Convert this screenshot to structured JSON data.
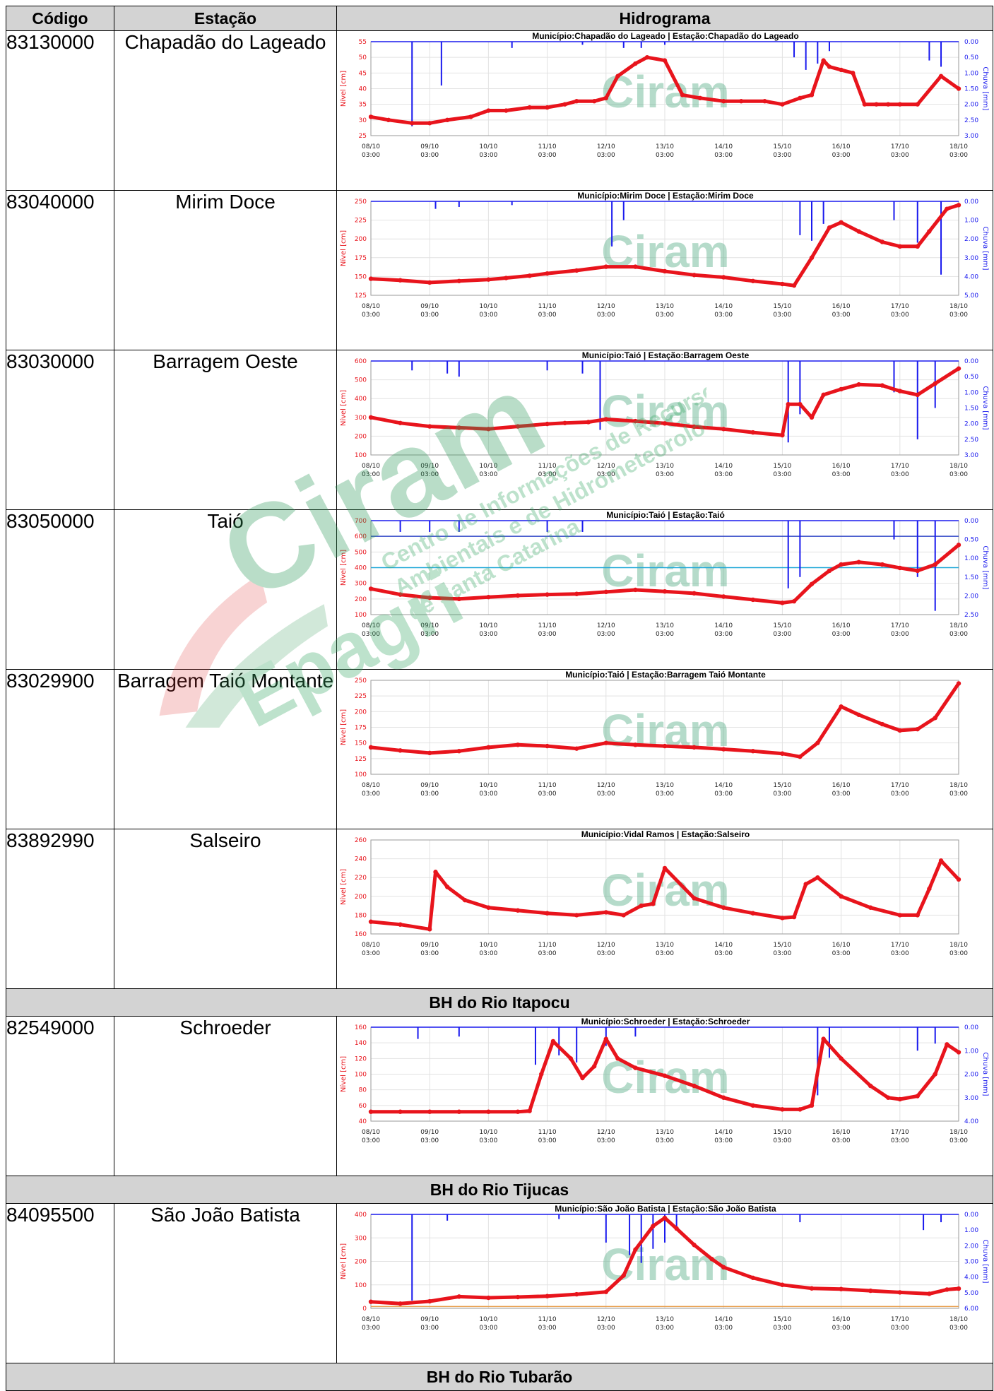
{
  "header": {
    "codigo": "Código",
    "estacao": "Estação",
    "hidrograma": "Hidrograma"
  },
  "watermark": {
    "logo": "Ciram",
    "brand": "Epagri",
    "line1": "Centro de Informações de Recursos",
    "line2": "Ambientais e de Hidrometeorologia",
    "line3": "de Santa Catarina"
  },
  "sections": [
    "BH do Rio Itapocu",
    "BH do Rio Tijucas",
    "BH do Rio Tubarão"
  ],
  "colors": {
    "level": "#e8141c",
    "rain": "#1a1aee",
    "watermark": "#5ab08a",
    "header_bg": "#d3d3d3",
    "alert": "#20a8d8",
    "emergency": "#3248c8",
    "orange_line": "#e8a050"
  },
  "date_labels": [
    "08/10",
    "09/10",
    "10/10",
    "11/10",
    "12/10",
    "13/10",
    "14/10",
    "15/10",
    "16/10",
    "17/10",
    "18/10"
  ],
  "time_label": "03:00",
  "level_axis_label": "Nível [cm]",
  "rain_axis_label": "Chuva [mm]",
  "stations": [
    {
      "code": "83130000",
      "name": "Chapadão do Lageado"
    },
    {
      "code": "83040000",
      "name": "Mirim Doce"
    },
    {
      "code": "83030000",
      "name": "Barragem Oeste"
    },
    {
      "code": "83050000",
      "name": "Taió"
    },
    {
      "code": "83029900",
      "name": "Barragem Taió Montante"
    },
    {
      "code": "83892990",
      "name": "Salseiro"
    },
    {
      "code": "82549000",
      "name": "Schroeder"
    },
    {
      "code": "84095500",
      "name": "São João Batista"
    }
  ],
  "chart_data": [
    {
      "type": "line",
      "title": "Município:Chapadão do Lageado | Estação:Chapadão do Lageado",
      "ylabel": "Nível [cm]",
      "y2label": "Chuva [mm]",
      "ylim": [
        25,
        55
      ],
      "yticks": [
        55,
        50,
        45,
        40,
        35,
        30,
        25
      ],
      "y2lim": [
        0,
        3
      ],
      "y2ticks": [
        "0.00",
        "0.50",
        "1.00",
        "1.50",
        "2.00",
        "2.50",
        "3.00"
      ],
      "series": [
        {
          "x": [
            0,
            0.3,
            0.7,
            1.0,
            1.3,
            1.7,
            2.0,
            2.3,
            2.7,
            3.0,
            3.3,
            3.5,
            3.8,
            4.0,
            4.2,
            4.5,
            4.7,
            5.0,
            5.3,
            5.6,
            6.0,
            6.3,
            6.7,
            7.0,
            7.3,
            7.5,
            7.7,
            7.8,
            8.0,
            8.2,
            8.4,
            8.6,
            8.8,
            9.0,
            9.3,
            9.7,
            10.0
          ],
          "y": [
            31,
            30,
            29,
            29,
            30,
            31,
            33,
            33,
            34,
            34,
            35,
            36,
            36,
            37,
            44,
            48,
            50,
            49,
            38,
            37,
            36,
            36,
            36,
            35,
            37,
            38,
            49,
            47,
            46,
            45,
            35,
            35,
            35,
            35,
            35,
            44,
            40
          ]
        }
      ],
      "rain": [
        {
          "x": 0.7,
          "v": 2.7
        },
        {
          "x": 1.2,
          "v": 1.4
        },
        {
          "x": 2.4,
          "v": 0.2
        },
        {
          "x": 3.6,
          "v": 0.1
        },
        {
          "x": 4.3,
          "v": 0.2
        },
        {
          "x": 4.6,
          "v": 0.2
        },
        {
          "x": 5.0,
          "v": 0.1
        },
        {
          "x": 7.2,
          "v": 0.5
        },
        {
          "x": 7.4,
          "v": 0.9
        },
        {
          "x": 7.6,
          "v": 0.7
        },
        {
          "x": 7.8,
          "v": 0.3
        },
        {
          "x": 9.5,
          "v": 0.6
        },
        {
          "x": 9.7,
          "v": 0.8
        }
      ]
    },
    {
      "type": "line",
      "title": "Município:Mirim Doce | Estação:Mirim Doce",
      "ylabel": "Nível [cm]",
      "y2label": "Chuva [mm]",
      "ylim": [
        125,
        250
      ],
      "yticks": [
        250,
        225,
        200,
        175,
        150,
        125
      ],
      "y2lim": [
        0,
        5
      ],
      "y2ticks": [
        "0.00",
        "1.00",
        "2.00",
        "3.00",
        "4.00",
        "5.00"
      ],
      "series": [
        {
          "x": [
            0,
            0.5,
            1.0,
            1.5,
            2.0,
            2.3,
            2.7,
            3.0,
            3.5,
            4.0,
            4.5,
            5.0,
            5.5,
            6.0,
            6.5,
            7.0,
            7.2,
            7.5,
            7.8,
            8.0,
            8.3,
            8.7,
            9.0,
            9.3,
            9.5,
            9.8,
            10.0
          ],
          "y": [
            147,
            145,
            142,
            144,
            146,
            148,
            151,
            154,
            158,
            163,
            163,
            157,
            152,
            149,
            144,
            140,
            138,
            175,
            215,
            222,
            210,
            196,
            190,
            190,
            210,
            240,
            245
          ]
        }
      ],
      "rain": [
        {
          "x": 1.1,
          "v": 0.4
        },
        {
          "x": 1.5,
          "v": 0.3
        },
        {
          "x": 2.4,
          "v": 0.2
        },
        {
          "x": 4.1,
          "v": 2.4
        },
        {
          "x": 4.3,
          "v": 1.0
        },
        {
          "x": 7.3,
          "v": 1.8
        },
        {
          "x": 7.5,
          "v": 2.1
        },
        {
          "x": 7.7,
          "v": 1.2
        },
        {
          "x": 8.9,
          "v": 1.0
        },
        {
          "x": 9.3,
          "v": 2.2
        },
        {
          "x": 9.7,
          "v": 3.9
        }
      ]
    },
    {
      "type": "line",
      "title": "Município:Taió | Estação:Barragem Oeste",
      "ylabel": "Nível [cm]",
      "y2label": "Chuva [mm]",
      "ylim": [
        100,
        600
      ],
      "yticks": [
        600,
        500,
        400,
        300,
        200,
        100
      ],
      "y2lim": [
        0,
        3
      ],
      "y2ticks": [
        "0.00",
        "0.50",
        "1.00",
        "1.50",
        "2.00",
        "2.50",
        "3.00"
      ],
      "series": [
        {
          "x": [
            0,
            0.5,
            1.0,
            1.5,
            2.0,
            2.5,
            3.0,
            3.3,
            3.7,
            4.0,
            4.5,
            5.0,
            5.5,
            6.0,
            6.5,
            7.0,
            7.1,
            7.3,
            7.5,
            7.7,
            8.0,
            8.3,
            8.7,
            9.0,
            9.3,
            9.6,
            10.0
          ],
          "y": [
            300,
            270,
            252,
            245,
            238,
            252,
            265,
            270,
            275,
            290,
            280,
            268,
            250,
            238,
            220,
            205,
            370,
            370,
            300,
            420,
            450,
            475,
            470,
            440,
            420,
            480,
            560
          ]
        }
      ],
      "rain": [
        {
          "x": 0.7,
          "v": 0.3
        },
        {
          "x": 1.3,
          "v": 0.4
        },
        {
          "x": 1.5,
          "v": 0.5
        },
        {
          "x": 3.0,
          "v": 0.3
        },
        {
          "x": 3.6,
          "v": 0.4
        },
        {
          "x": 3.9,
          "v": 2.2
        },
        {
          "x": 7.1,
          "v": 2.6
        },
        {
          "x": 7.3,
          "v": 1.7
        },
        {
          "x": 8.9,
          "v": 1.0
        },
        {
          "x": 9.3,
          "v": 2.5
        },
        {
          "x": 9.6,
          "v": 1.5
        }
      ]
    },
    {
      "type": "line",
      "title": "Município:Taió | Estação:Taió",
      "ylabel": "Nível [cm]",
      "y2label": "Chuva [mm]",
      "ylim": [
        100,
        700
      ],
      "yticks": [
        700,
        600,
        500,
        400,
        300,
        200,
        100
      ],
      "y2lim": [
        0,
        2.5
      ],
      "y2ticks": [
        "0.00",
        "0.50",
        "1.00",
        "1.50",
        "2.00",
        "2.50"
      ],
      "ref_lines": [
        {
          "y": 600,
          "color": "#3248c8"
        },
        {
          "y": 400,
          "color": "#20a8d8"
        }
      ],
      "series": [
        {
          "x": [
            0,
            0.5,
            1.0,
            1.5,
            2.0,
            2.5,
            3.0,
            3.5,
            4.0,
            4.5,
            5.0,
            5.5,
            6.0,
            6.5,
            7.0,
            7.2,
            7.5,
            7.8,
            8.0,
            8.3,
            8.7,
            9.0,
            9.3,
            9.6,
            10.0
          ],
          "y": [
            265,
            228,
            208,
            200,
            212,
            222,
            228,
            232,
            245,
            258,
            248,
            236,
            215,
            195,
            175,
            185,
            295,
            380,
            420,
            435,
            420,
            398,
            380,
            420,
            545
          ]
        }
      ],
      "rain": [
        {
          "x": 0.5,
          "v": 0.3
        },
        {
          "x": 1.0,
          "v": 0.3
        },
        {
          "x": 1.5,
          "v": 0.3
        },
        {
          "x": 3.0,
          "v": 0.3
        },
        {
          "x": 3.6,
          "v": 0.3
        },
        {
          "x": 7.1,
          "v": 1.8
        },
        {
          "x": 7.3,
          "v": 1.5
        },
        {
          "x": 8.9,
          "v": 0.5
        },
        {
          "x": 9.3,
          "v": 1.5
        },
        {
          "x": 9.6,
          "v": 2.4
        }
      ]
    },
    {
      "type": "line",
      "title": "Município:Taió | Estação:Barragem Taió Montante",
      "ylabel": "Nível [cm]",
      "ylim": [
        100,
        250
      ],
      "yticks": [
        250,
        225,
        200,
        175,
        150,
        125,
        100
      ],
      "series": [
        {
          "x": [
            0,
            0.5,
            1.0,
            1.5,
            2.0,
            2.5,
            3.0,
            3.5,
            4.0,
            4.5,
            5.0,
            5.5,
            6.0,
            6.5,
            7.0,
            7.3,
            7.6,
            8.0,
            8.3,
            8.7,
            9.0,
            9.3,
            9.6,
            10.0
          ],
          "y": [
            143,
            138,
            134,
            137,
            143,
            147,
            145,
            141,
            150,
            147,
            145,
            143,
            140,
            137,
            133,
            128,
            150,
            208,
            195,
            180,
            170,
            172,
            190,
            245
          ]
        }
      ],
      "rain": []
    },
    {
      "type": "line",
      "title": "Município:Vidal Ramos | Estação:Salseiro",
      "ylabel": "Nível [cm]",
      "ylim": [
        160,
        260
      ],
      "yticks": [
        260,
        240,
        220,
        200,
        180,
        160
      ],
      "series": [
        {
          "x": [
            0,
            0.5,
            1.0,
            1.1,
            1.3,
            1.6,
            2.0,
            2.5,
            3.0,
            3.5,
            4.0,
            4.3,
            4.6,
            4.8,
            5.0,
            5.5,
            6.0,
            6.5,
            7.0,
            7.2,
            7.4,
            7.6,
            8.0,
            8.5,
            9.0,
            9.3,
            9.5,
            9.7,
            10.0
          ],
          "y": [
            173,
            170,
            165,
            226,
            210,
            196,
            188,
            185,
            182,
            180,
            183,
            180,
            190,
            192,
            230,
            198,
            188,
            182,
            177,
            178,
            213,
            220,
            200,
            188,
            180,
            180,
            208,
            238,
            218
          ]
        }
      ],
      "rain": []
    },
    {
      "type": "line",
      "title": "Município:Schroeder | Estação:Schroeder",
      "ylabel": "Nível [cm]",
      "y2label": "Chuva [mm]",
      "ylim": [
        40,
        160
      ],
      "yticks": [
        160,
        140,
        120,
        100,
        80,
        60,
        40
      ],
      "y2lim": [
        0,
        4
      ],
      "y2ticks": [
        "0.00",
        "1.00",
        "2.00",
        "3.00",
        "4.00"
      ],
      "series": [
        {
          "x": [
            0,
            0.5,
            1.0,
            1.5,
            2.0,
            2.5,
            2.7,
            2.9,
            3.1,
            3.4,
            3.6,
            3.8,
            4.0,
            4.2,
            4.5,
            5.0,
            5.5,
            6.0,
            6.5,
            7.0,
            7.3,
            7.5,
            7.7,
            8.0,
            8.5,
            8.8,
            9.0,
            9.3,
            9.6,
            9.8,
            10.0
          ],
          "y": [
            52,
            52,
            52,
            52,
            52,
            52,
            53,
            100,
            142,
            120,
            95,
            110,
            145,
            120,
            108,
            98,
            85,
            70,
            60,
            55,
            55,
            60,
            145,
            120,
            85,
            70,
            68,
            72,
            100,
            138,
            128
          ]
        }
      ],
      "rain": [
        {
          "x": 0.8,
          "v": 0.5
        },
        {
          "x": 1.5,
          "v": 0.4
        },
        {
          "x": 2.8,
          "v": 1.6
        },
        {
          "x": 3.2,
          "v": 1.2
        },
        {
          "x": 3.5,
          "v": 1.5
        },
        {
          "x": 4.0,
          "v": 0.8
        },
        {
          "x": 4.5,
          "v": 0.4
        },
        {
          "x": 7.6,
          "v": 2.9
        },
        {
          "x": 7.8,
          "v": 1.3
        },
        {
          "x": 9.3,
          "v": 1.0
        },
        {
          "x": 9.6,
          "v": 0.7
        }
      ]
    },
    {
      "type": "line",
      "title": "Município:São João Batista | Estação:São João Batista",
      "ylabel": "Nível [cm]",
      "y2label": "Chuva [mm]",
      "ylim": [
        0,
        400
      ],
      "yticks": [
        400,
        300,
        200,
        100,
        0
      ],
      "y2lim": [
        0,
        6
      ],
      "y2ticks": [
        "0.00",
        "1.00",
        "2.00",
        "3.00",
        "4.00",
        "5.00",
        "6.00"
      ],
      "ref_lines": [
        {
          "y": 8,
          "color": "#e8a050"
        }
      ],
      "series": [
        {
          "x": [
            0,
            0.5,
            1.0,
            1.5,
            2.0,
            2.5,
            3.0,
            3.5,
            4.0,
            4.3,
            4.5,
            4.8,
            5.0,
            5.2,
            5.5,
            5.8,
            6.0,
            6.5,
            7.0,
            7.5,
            8.0,
            8.5,
            9.0,
            9.5,
            9.8,
            10.0
          ],
          "y": [
            28,
            20,
            30,
            50,
            45,
            48,
            52,
            60,
            70,
            140,
            250,
            350,
            385,
            340,
            270,
            210,
            175,
            130,
            100,
            85,
            82,
            75,
            68,
            62,
            80,
            84
          ]
        }
      ],
      "rain": [
        {
          "x": 0.7,
          "v": 5.5
        },
        {
          "x": 1.3,
          "v": 0.4
        },
        {
          "x": 3.2,
          "v": 0.3
        },
        {
          "x": 4.0,
          "v": 1.8
        },
        {
          "x": 4.4,
          "v": 2.6
        },
        {
          "x": 4.6,
          "v": 3.1
        },
        {
          "x": 4.8,
          "v": 2.2
        },
        {
          "x": 5.0,
          "v": 1.8
        },
        {
          "x": 5.2,
          "v": 1.0
        },
        {
          "x": 7.3,
          "v": 0.5
        },
        {
          "x": 9.4,
          "v": 1.0
        },
        {
          "x": 9.7,
          "v": 0.5
        }
      ]
    }
  ]
}
